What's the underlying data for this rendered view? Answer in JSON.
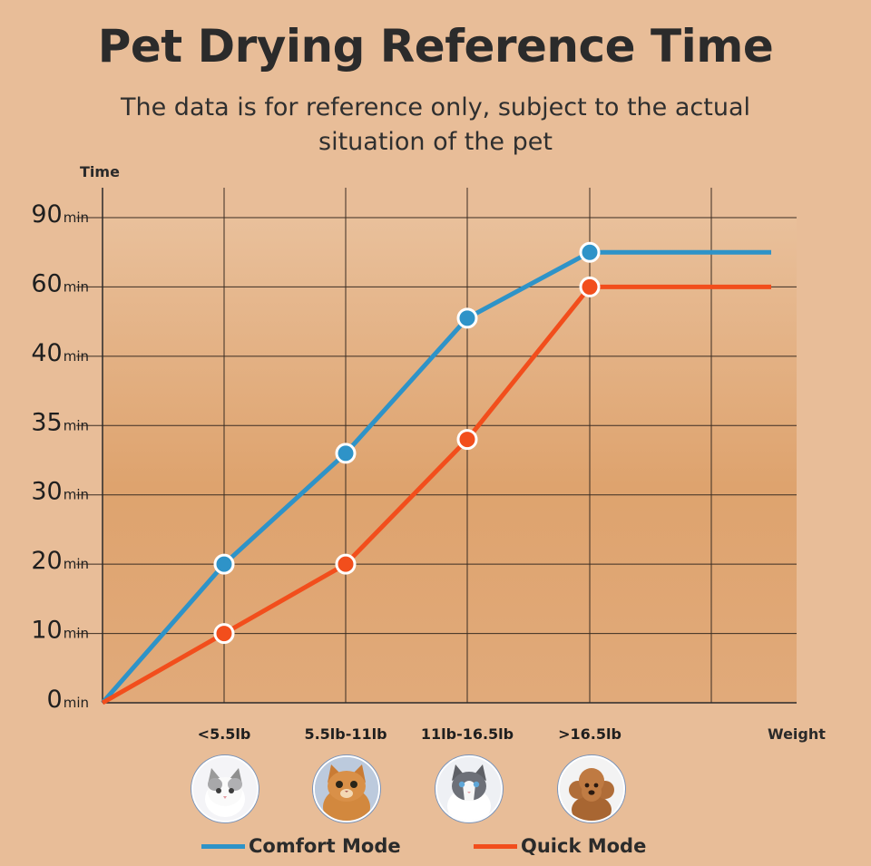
{
  "chart_data": {
    "type": "line",
    "title": "Pet Drying Reference Time",
    "subtitle": "The data is for reference only, subject to the actual situation of the pet",
    "ylabel": "Time",
    "xlabel": "Weight",
    "y_tick_labels": [
      {
        "num": "0",
        "unit": "min"
      },
      {
        "num": "10",
        "unit": "min"
      },
      {
        "num": "20",
        "unit": "min"
      },
      {
        "num": "30",
        "unit": "min"
      },
      {
        "num": "35",
        "unit": "min"
      },
      {
        "num": "40",
        "unit": "min"
      },
      {
        "num": "60",
        "unit": "min"
      },
      {
        "num": "90",
        "unit": "min"
      }
    ],
    "categories": [
      "",
      "<5.5lb",
      "5.5lb-11lb",
      "11lb-16.5lb",
      ">16.5lb"
    ],
    "series": [
      {
        "name": "Comfort Mode",
        "color": "#2e93c8",
        "values": [
          0,
          20,
          33,
          51,
          75
        ],
        "extends_flat": true
      },
      {
        "name": "Quick Mode",
        "color": "#f24e1c",
        "values": [
          0,
          10,
          20,
          34,
          60
        ],
        "extends_flat": true
      }
    ],
    "ylim": [
      0,
      90
    ],
    "grid": true,
    "legend_position": "bottom",
    "category_icons": [
      "cat-white-icon",
      "cat-orange-icon",
      "cat-gray-white-icon",
      "poodle-icon"
    ]
  }
}
